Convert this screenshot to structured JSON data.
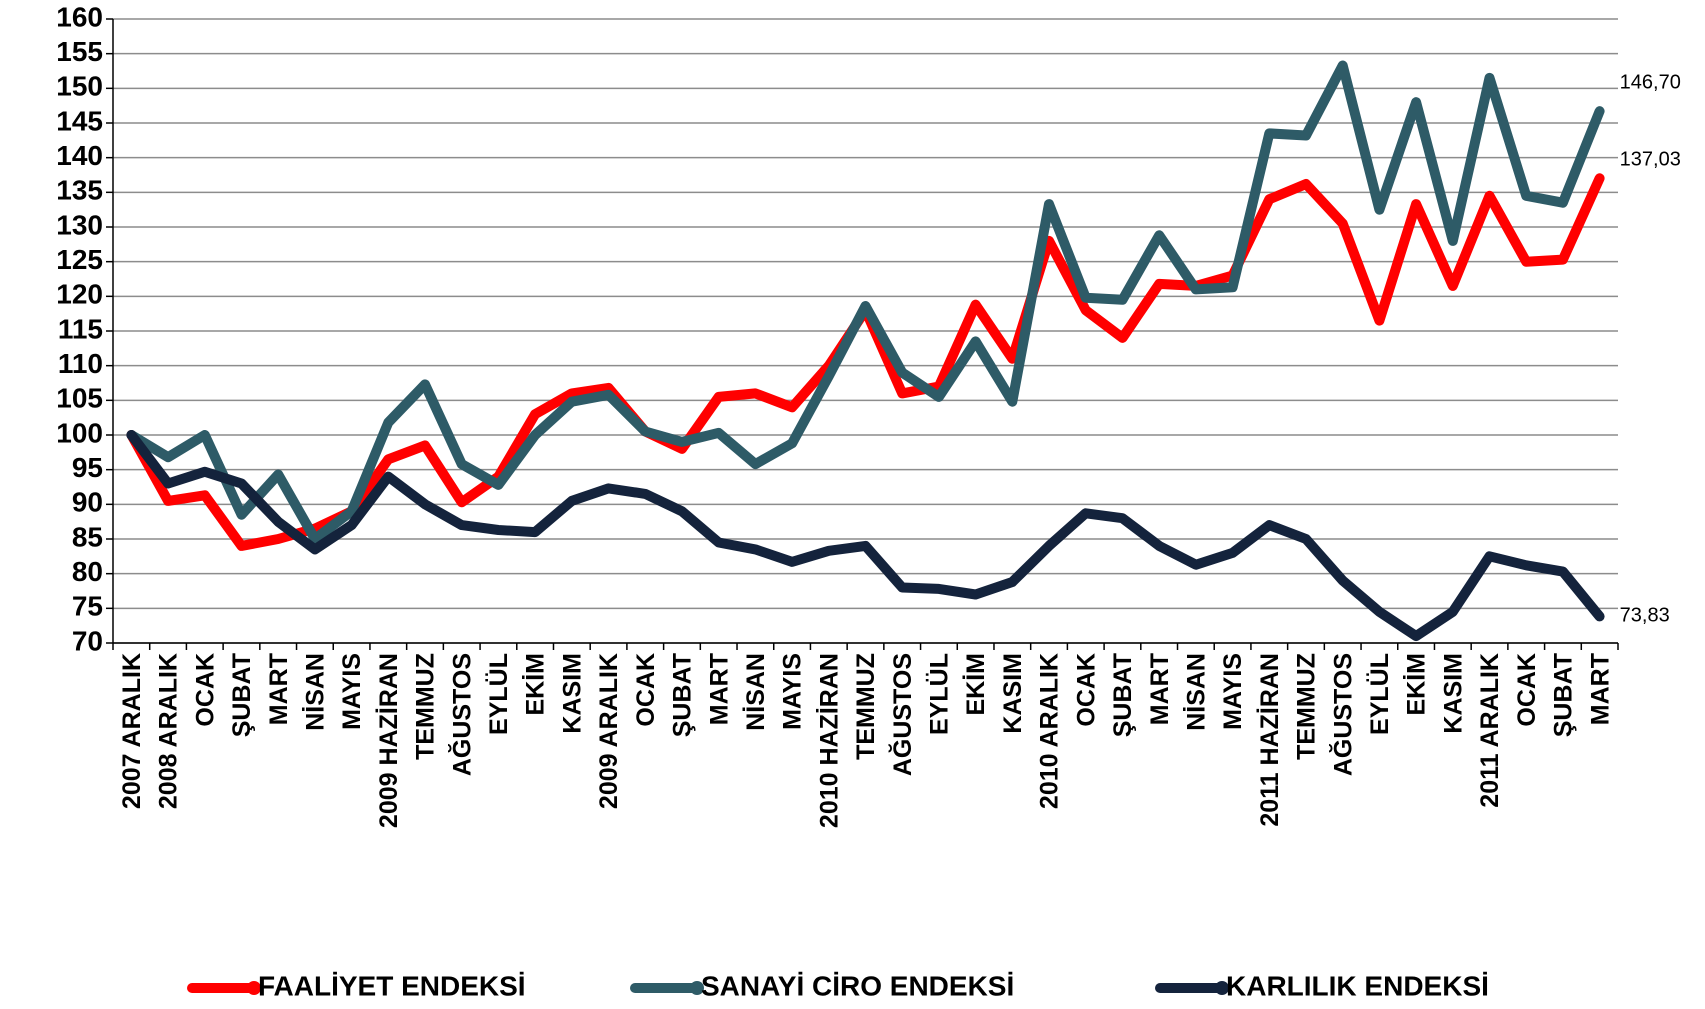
{
  "chart_data": {
    "type": "line",
    "categories": [
      "2007 ARALIK",
      "2008 ARALIK",
      "OCAK",
      "ŞUBAT",
      "MART",
      "NİSAN",
      "MAYIS",
      "2009 HAZİRAN",
      "TEMMUZ",
      "AĞUSTOS",
      "EYLÜL",
      "EKİM",
      "KASIM",
      "2009 ARALIK",
      "OCAK",
      "ŞUBAT",
      "MART",
      "NİSAN",
      "MAYIS",
      "2010 HAZİRAN",
      "TEMMUZ",
      "AĞUSTOS",
      "EYLÜL",
      "EKİM",
      "KASIM",
      "2010 ARALIK",
      "OCAK",
      "ŞUBAT",
      "MART",
      "NİSAN",
      "MAYIS",
      "2011 HAZİRAN",
      "TEMMUZ",
      "AĞUSTOS",
      "EYLÜL",
      "EKİM",
      "KASIM",
      "2011 ARALIK",
      "OCAK",
      "ŞUBAT",
      "MART"
    ],
    "series": [
      {
        "name": "FAALİYET ENDEKSİ",
        "color": "#ff0000",
        "values": [
          100,
          90.5,
          91.3,
          84,
          85,
          86.5,
          89,
          96.5,
          98.5,
          90.3,
          94,
          103,
          106,
          106.8,
          100.5,
          98,
          105.5,
          106,
          104,
          110,
          118,
          106,
          107,
          118.8,
          111,
          128,
          118,
          114,
          121.8,
          121.5,
          123,
          134,
          136.2,
          130.5,
          116.5,
          133.3,
          121.5,
          134.5,
          125,
          125.3,
          137.03
        ],
        "value_labels": [
          null,
          null,
          null,
          null,
          null,
          null,
          null,
          null,
          null,
          null,
          null,
          null,
          null,
          null,
          null,
          null,
          null,
          null,
          null,
          null,
          null,
          null,
          null,
          null,
          null,
          null,
          null,
          null,
          null,
          null,
          null,
          null,
          null,
          null,
          null,
          null,
          null,
          null,
          null,
          null,
          "137,03"
        ]
      },
      {
        "name": "SANAYİ CİRO ENDEKSİ",
        "color": "#2e5b67",
        "values": [
          100,
          96.8,
          100,
          88.5,
          94.3,
          85,
          89,
          101.8,
          107.3,
          95.8,
          92.8,
          100,
          104.8,
          105.8,
          100.5,
          99,
          100.3,
          95.8,
          98.8,
          108.5,
          118.6,
          109,
          105.5,
          113.5,
          104.8,
          133.3,
          119.8,
          119.5,
          128.8,
          121,
          121.3,
          143.5,
          143.2,
          153.3,
          132.5,
          148,
          128,
          151.5,
          134.5,
          133.5,
          146.7
        ],
        "value_labels": [
          null,
          null,
          null,
          null,
          null,
          null,
          null,
          null,
          null,
          null,
          null,
          null,
          null,
          null,
          null,
          null,
          null,
          null,
          null,
          null,
          null,
          null,
          null,
          null,
          null,
          null,
          null,
          null,
          null,
          null,
          null,
          null,
          null,
          null,
          null,
          null,
          null,
          null,
          null,
          null,
          "146,70"
        ]
      },
      {
        "name": "KARLILIK ENDEKSİ",
        "color": "#14233c",
        "values": [
          100,
          93,
          94.7,
          93,
          87.5,
          83.5,
          87,
          94,
          90,
          87,
          86.3,
          86,
          90.5,
          92.3,
          91.5,
          89,
          84.5,
          83.5,
          81.7,
          83.3,
          84,
          78,
          77.8,
          77,
          78.8,
          84,
          88.7,
          88,
          84,
          81.3,
          83,
          87,
          85,
          79,
          74.5,
          71,
          74.5,
          82.5,
          81.2,
          80.3,
          73.83
        ],
        "value_labels": [
          null,
          null,
          null,
          null,
          null,
          null,
          null,
          null,
          null,
          null,
          null,
          null,
          null,
          null,
          null,
          null,
          null,
          null,
          null,
          null,
          null,
          null,
          null,
          null,
          null,
          null,
          null,
          null,
          null,
          null,
          null,
          null,
          null,
          null,
          null,
          null,
          null,
          null,
          null,
          null,
          "73,83"
        ]
      }
    ],
    "ylim": [
      70,
      160
    ],
    "yticks": [
      70,
      75,
      80,
      85,
      90,
      95,
      100,
      105,
      110,
      115,
      120,
      125,
      130,
      135,
      140,
      145,
      150,
      155,
      160
    ],
    "grid": true,
    "legend": "bottom"
  }
}
